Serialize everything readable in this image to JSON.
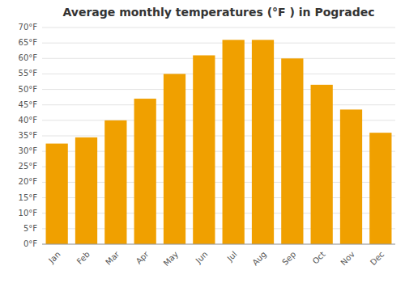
{
  "chart_data": {
    "type": "bar",
    "title": "Average monthly temperatures (°F ) in Pogradec",
    "categories": [
      "Jan",
      "Feb",
      "Mar",
      "Apr",
      "May",
      "Jun",
      "Jul",
      "Aug",
      "Sep",
      "Oct",
      "Nov",
      "Dec"
    ],
    "values": [
      32.5,
      34.5,
      40.0,
      47.0,
      55.0,
      61.0,
      66.0,
      66.0,
      60.0,
      51.5,
      43.5,
      36.0
    ],
    "color": "#F0A000",
    "ylim": [
      0,
      70
    ],
    "yticks": [
      {
        "value": 0,
        "label": "0°F"
      },
      {
        "value": 5,
        "label": "5°F"
      },
      {
        "value": 10,
        "label": "10°F"
      },
      {
        "value": 15,
        "label": "15°F"
      },
      {
        "value": 20,
        "label": "20°F"
      },
      {
        "value": 25,
        "label": "25°F"
      },
      {
        "value": 30,
        "label": "30°F"
      },
      {
        "value": 35,
        "label": "35°F"
      },
      {
        "value": 40,
        "label": "40°F"
      },
      {
        "value": 45,
        "label": "45°F"
      },
      {
        "value": 50,
        "label": "50°F"
      },
      {
        "value": 55,
        "label": "55°F"
      },
      {
        "value": 60,
        "label": "60°F"
      },
      {
        "value": 65,
        "label": "65°F"
      },
      {
        "value": 70,
        "label": "70°F"
      }
    ],
    "grid": true
  }
}
